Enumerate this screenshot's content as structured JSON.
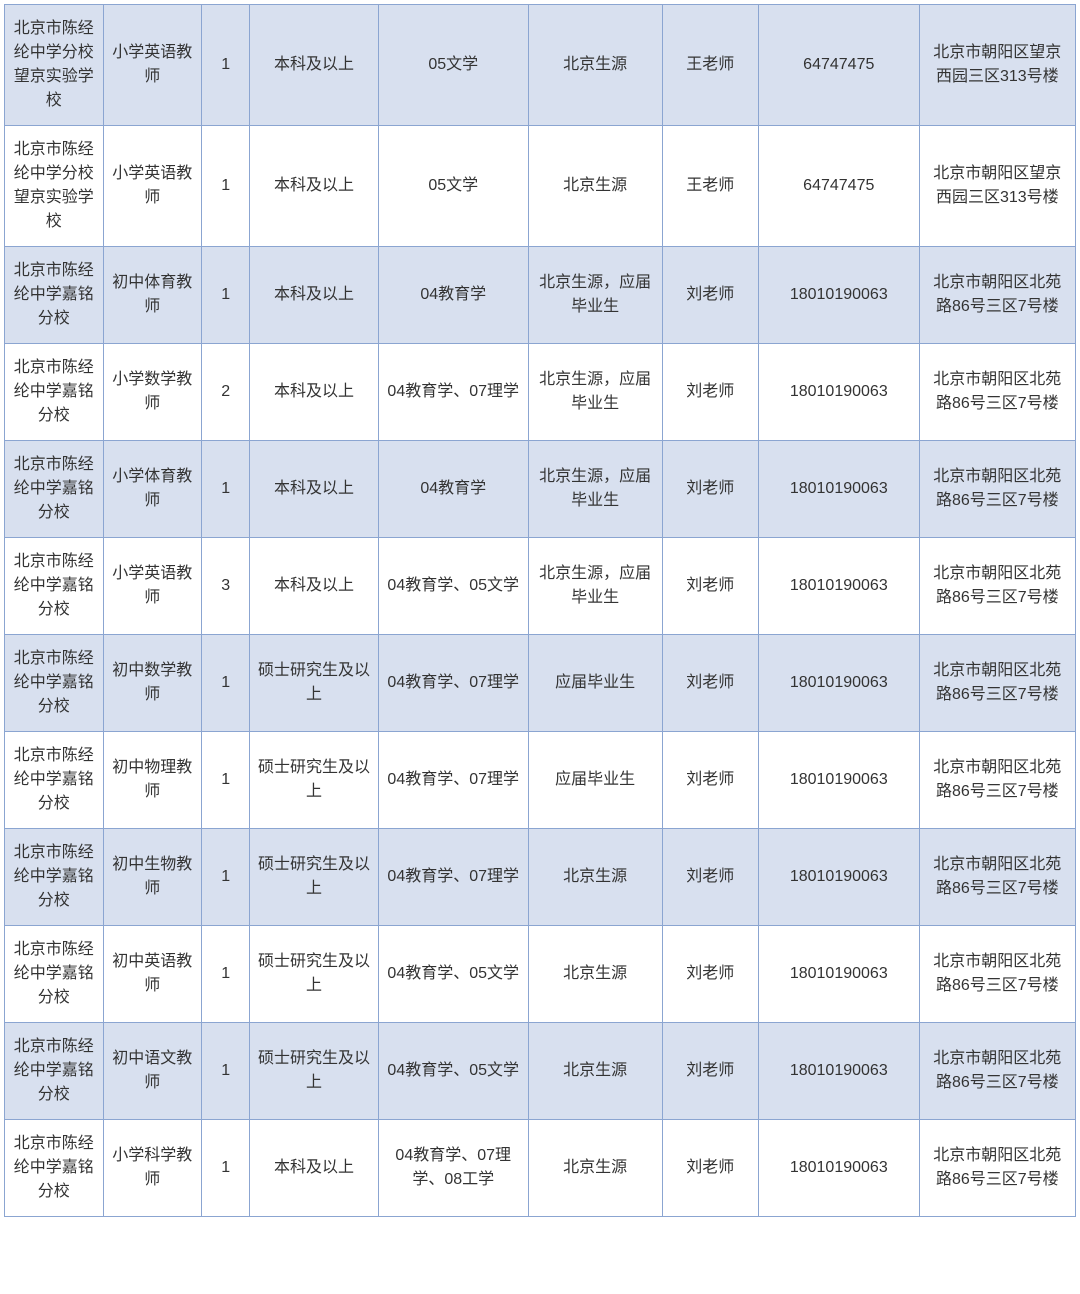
{
  "table": {
    "border_color": "#8ba5d1",
    "shaded_bg": "#d8e0ef",
    "white_bg": "#ffffff",
    "text_color": "#333333",
    "font_size": 16,
    "column_widths": [
      "9.2%",
      "9.2%",
      "4.5%",
      "12%",
      "14%",
      "12.5%",
      "9%",
      "15%",
      "14.6%"
    ],
    "rows": [
      {
        "shaded": true,
        "cells": [
          "北京市陈经纶中学分校望京实验学校",
          "小学英语教师",
          "1",
          "本科及以上",
          "05文学",
          "北京生源",
          "王老师",
          "64747475",
          "北京市朝阳区望京西园三区313号楼"
        ]
      },
      {
        "shaded": false,
        "cells": [
          "北京市陈经纶中学分校望京实验学校",
          "小学英语教师",
          "1",
          "本科及以上",
          "05文学",
          "北京生源",
          "王老师",
          "64747475",
          "北京市朝阳区望京西园三区313号楼"
        ]
      },
      {
        "shaded": true,
        "cells": [
          "北京市陈经纶中学嘉铭分校",
          "初中体育教师",
          "1",
          "本科及以上",
          "04教育学",
          "北京生源，应届毕业生",
          "刘老师",
          "18010190063",
          "北京市朝阳区北苑路86号三区7号楼"
        ]
      },
      {
        "shaded": false,
        "cells": [
          "北京市陈经纶中学嘉铭分校",
          "小学数学教师",
          "2",
          "本科及以上",
          "04教育学、07理学",
          "北京生源，应届毕业生",
          "刘老师",
          "18010190063",
          "北京市朝阳区北苑路86号三区7号楼"
        ]
      },
      {
        "shaded": true,
        "cells": [
          "北京市陈经纶中学嘉铭分校",
          "小学体育教师",
          "1",
          "本科及以上",
          "04教育学",
          "北京生源，应届毕业生",
          "刘老师",
          "18010190063",
          "北京市朝阳区北苑路86号三区7号楼"
        ]
      },
      {
        "shaded": false,
        "cells": [
          "北京市陈经纶中学嘉铭分校",
          "小学英语教师",
          "3",
          "本科及以上",
          "04教育学、05文学",
          "北京生源，应届毕业生",
          "刘老师",
          "18010190063",
          "北京市朝阳区北苑路86号三区7号楼"
        ]
      },
      {
        "shaded": true,
        "cells": [
          "北京市陈经纶中学嘉铭分校",
          "初中数学教师",
          "1",
          "硕士研究生及以上",
          "04教育学、07理学",
          "应届毕业生",
          "刘老师",
          "18010190063",
          "北京市朝阳区北苑路86号三区7号楼"
        ]
      },
      {
        "shaded": false,
        "cells": [
          "北京市陈经纶中学嘉铭分校",
          "初中物理教师",
          "1",
          "硕士研究生及以上",
          "04教育学、07理学",
          "应届毕业生",
          "刘老师",
          "18010190063",
          "北京市朝阳区北苑路86号三区7号楼"
        ]
      },
      {
        "shaded": true,
        "cells": [
          "北京市陈经纶中学嘉铭分校",
          "初中生物教师",
          "1",
          "硕士研究生及以上",
          "04教育学、07理学",
          "北京生源",
          "刘老师",
          "18010190063",
          "北京市朝阳区北苑路86号三区7号楼"
        ]
      },
      {
        "shaded": false,
        "cells": [
          "北京市陈经纶中学嘉铭分校",
          "初中英语教师",
          "1",
          "硕士研究生及以上",
          "04教育学、05文学",
          "北京生源",
          "刘老师",
          "18010190063",
          "北京市朝阳区北苑路86号三区7号楼"
        ]
      },
      {
        "shaded": true,
        "cells": [
          "北京市陈经纶中学嘉铭分校",
          "初中语文教师",
          "1",
          "硕士研究生及以上",
          "04教育学、05文学",
          "北京生源",
          "刘老师",
          "18010190063",
          "北京市朝阳区北苑路86号三区7号楼"
        ]
      },
      {
        "shaded": false,
        "cells": [
          "北京市陈经纶中学嘉铭分校",
          "小学科学教师",
          "1",
          "本科及以上",
          "04教育学、07理学、08工学",
          "北京生源",
          "刘老师",
          "18010190063",
          "北京市朝阳区北苑路86号三区7号楼"
        ]
      }
    ]
  }
}
